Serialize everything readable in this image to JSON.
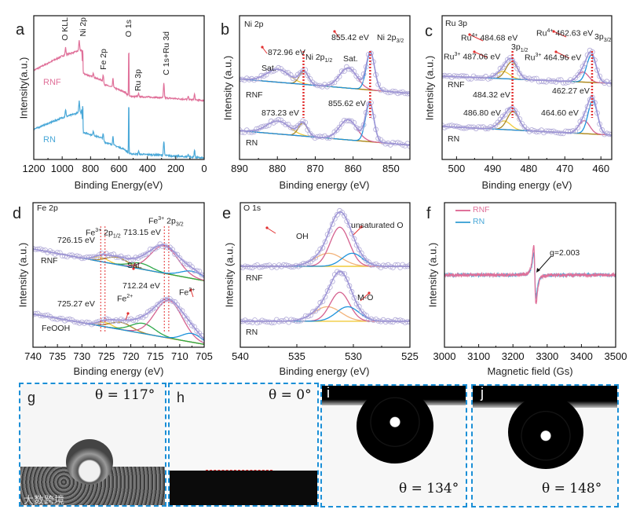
{
  "panels": {
    "a": {
      "letter": "a",
      "ylabel": "Intensity(a.u.)",
      "xlabel": "Binding Energy(eV)",
      "peak_labels": [
        "O KLL",
        "Ni 2p",
        "Fe 2p",
        "O 1s",
        "Ru 3p",
        "C 1s+Ru 3d"
      ],
      "series_labels": [
        "RNF",
        "RN"
      ]
    },
    "b": {
      "letter": "b",
      "title": "Ni 2p",
      "ylabel": "Intensity (a.u.)",
      "xlabel": "Binding energy (eV)",
      "ann": {
        "e1": "855.42 eV",
        "e2": "872.96 eV",
        "e3": "855.62 eV",
        "e4": "873.23 eV",
        "sat": "Sat.",
        "p32": "Ni 2p",
        "p32sub": "3/2",
        "p12": "Ni 2p",
        "p12sub": "1/2"
      },
      "series_labels": [
        "RNF",
        "RN"
      ]
    },
    "c": {
      "letter": "c",
      "title": "Ru 3p",
      "ylabel": "Intensity (a.u.)",
      "xlabel": "Binding energy (eV)",
      "ann": {
        "ru4": "Ru",
        "ru4sup": "4+",
        "ru3": "Ru",
        "ru3sup": "3+",
        "e1": "484.68 eV",
        "e2": "462.63 eV",
        "e3": "487.06 eV",
        "e4": "464.96 eV",
        "e5": "484.32 eV",
        "e6": "462.27 eV",
        "e7": "486.80 eV",
        "e8": "464.60 eV",
        "p12": "3p",
        "p12sub": "1/2",
        "p32": "3p",
        "p32sub": "3/2"
      },
      "series_labels": [
        "RNF",
        "RN"
      ]
    },
    "d": {
      "letter": "d",
      "title": "Fe 2p",
      "ylabel": "Intensity (a.u.)",
      "xlabel": "Binding energy (eV)",
      "ann": {
        "fe": "Fe",
        "fe3": "3+",
        "fe2": "2+",
        "p32": " 2p",
        "p32sub": "3/2",
        "p12": " 2p",
        "p12sub": "1/2",
        "e1": "713.15 eV",
        "e2": "726.15 eV",
        "e3": "712.24 eV",
        "e4": "725.27 eV",
        "sat": "Sat."
      },
      "series_labels": [
        "RNF",
        "FeOOH"
      ]
    },
    "e": {
      "letter": "e",
      "title": "O 1s",
      "ylabel": "Intensity (a.u.)",
      "xlabel": "Binding energy (eV)",
      "ann": {
        "unsat": "unsaturated O",
        "oh": "OH",
        "mo": "M-O"
      },
      "series_labels": [
        "RNF",
        "RN"
      ]
    },
    "f": {
      "letter": "f",
      "ylabel": "Intensity (a.u.)",
      "xlabel": "Magnetic field (Gs)",
      "legend": [
        "RNF",
        "RN"
      ],
      "g_label": "g=2.003"
    }
  },
  "images": [
    {
      "letter": "g",
      "theta": "θ = 117°"
    },
    {
      "letter": "h",
      "theta": "θ = 0°"
    },
    {
      "letter": "i",
      "theta": "θ = 134°"
    },
    {
      "letter": "j",
      "theta": "θ = 148°"
    }
  ],
  "watermark": "大数跨境",
  "colors": {
    "rnf": "#e0719a",
    "rn": "#4aa8d8",
    "envelope": "#9d94d6",
    "bg": "#f0cc3c",
    "brown": "#a8872a",
    "pink": "#d5618f",
    "blue": "#1e93dc",
    "green": "#2ea84a",
    "orange": "#f2b27a",
    "marker": "#e23030",
    "frame": "#1b8fd6"
  },
  "chart_data": [
    {
      "id": "a",
      "type": "line",
      "xlim": [
        1200,
        0
      ],
      "ylim": [
        0,
        1
      ],
      "xticks": [
        1200,
        1000,
        800,
        600,
        400,
        200,
        0
      ],
      "series": [
        {
          "name": "RNF",
          "baseline": [
            [
              1200,
              0.62
            ],
            [
              1000,
              0.72
            ],
            [
              870,
              0.76
            ],
            [
              855,
              0.6
            ],
            [
              720,
              0.55
            ],
            [
              700,
              0.52
            ],
            [
              640,
              0.5
            ],
            [
              560,
              0.47
            ],
            [
              530,
              0.44
            ],
            [
              300,
              0.43
            ],
            [
              0,
              0.41
            ]
          ],
          "peaks": [
            [
              976,
              0.05
            ],
            [
              880,
              0.07
            ],
            [
              862,
              0.08
            ],
            [
              855,
              0.17
            ],
            [
              780,
              0.03
            ],
            [
              711,
              0.05
            ],
            [
              642,
              0.06
            ],
            [
              531,
              0.37
            ],
            [
              462,
              0.02
            ],
            [
              284,
              0.1
            ],
            [
              112,
              0.02
            ],
            [
              68,
              0.04
            ]
          ]
        },
        {
          "name": "RN",
          "baseline": [
            [
              1200,
              0.21
            ],
            [
              1000,
              0.29
            ],
            [
              870,
              0.33
            ],
            [
              855,
              0.19
            ],
            [
              720,
              0.15
            ],
            [
              700,
              0.12
            ],
            [
              640,
              0.1
            ],
            [
              560,
              0.07
            ],
            [
              530,
              0.04
            ],
            [
              300,
              0.03
            ],
            [
              0,
              0.01
            ]
          ],
          "peaks": [
            [
              976,
              0.05
            ],
            [
              880,
              0.08
            ],
            [
              862,
              0.09
            ],
            [
              855,
              0.2
            ],
            [
              780,
              0.03
            ],
            [
              711,
              0.04
            ],
            [
              642,
              0.06
            ],
            [
              531,
              0.4
            ],
            [
              462,
              0.02
            ],
            [
              284,
              0.1
            ],
            [
              112,
              0.02
            ],
            [
              68,
              0.05
            ]
          ]
        }
      ]
    },
    {
      "id": "b",
      "type": "xps",
      "xlim": [
        890,
        845
      ],
      "ylim": [
        0,
        1
      ],
      "xticks": [
        890,
        880,
        870,
        860,
        850
      ],
      "markers": [
        873.1,
        855.5
      ],
      "series": [
        {
          "name": "RNF",
          "bg": [
            0.56,
            0.46
          ],
          "components": [
            {
              "name": "Sat.",
              "c": 879.8,
              "h": 0.09,
              "w": 3.0,
              "color": "bg"
            },
            {
              "name": "Ni 2p1/2",
              "c": 873.0,
              "h": 0.09,
              "w": 1.2,
              "color": "brown"
            },
            {
              "name": "Sat.",
              "c": 861.3,
              "h": 0.14,
              "w": 2.3,
              "color": "pink"
            },
            {
              "name": "Ni 2p3/2",
              "c": 855.42,
              "h": 0.26,
              "w": 1.1,
              "color": "blue"
            }
          ]
        },
        {
          "name": "RN",
          "bg": [
            0.2,
            0.1
          ],
          "components": [
            {
              "name": "Sat.",
              "c": 879.8,
              "h": 0.09,
              "w": 3.0,
              "color": "bg"
            },
            {
              "name": "Ni 2p1/2",
              "c": 873.23,
              "h": 0.09,
              "w": 1.2,
              "color": "brown"
            },
            {
              "name": "Sat.",
              "c": 861.3,
              "h": 0.14,
              "w": 2.3,
              "color": "pink"
            },
            {
              "name": "Ni 2p3/2",
              "c": 855.62,
              "h": 0.27,
              "w": 1.1,
              "color": "blue"
            }
          ]
        }
      ]
    },
    {
      "id": "c",
      "type": "xps",
      "xlim": [
        504,
        457
      ],
      "ylim": [
        0,
        1
      ],
      "xticks": [
        500,
        490,
        480,
        470,
        460
      ],
      "markers": [
        484.5,
        462.45
      ],
      "series": [
        {
          "name": "RNF",
          "bg": [
            0.58,
            0.53
          ],
          "components": [
            {
              "name": "Ru3+ 3p1/2",
              "c": 487.06,
              "h": 0.05,
              "w": 1.8,
              "color": "bg"
            },
            {
              "name": "Ru4+ 3p1/2",
              "c": 484.68,
              "h": 0.12,
              "w": 1.6,
              "color": "brown"
            },
            {
              "name": "Ru3+ 3p3/2",
              "c": 464.96,
              "h": 0.07,
              "w": 1.5,
              "color": "pink"
            },
            {
              "name": "Ru4+ 3p3/2",
              "c": 462.63,
              "h": 0.19,
              "w": 1.3,
              "color": "blue"
            }
          ]
        },
        {
          "name": "RN",
          "bg": [
            0.23,
            0.17
          ],
          "components": [
            {
              "name": "Ru3+ 3p1/2",
              "c": 486.8,
              "h": 0.06,
              "w": 1.8,
              "color": "bg"
            },
            {
              "name": "Ru4+ 3p1/2",
              "c": 484.32,
              "h": 0.13,
              "w": 1.6,
              "color": "brown"
            },
            {
              "name": "Ru3+ 3p3/2",
              "c": 464.6,
              "h": 0.09,
              "w": 1.5,
              "color": "pink"
            },
            {
              "name": "Ru4+ 3p3/2",
              "c": 462.27,
              "h": 0.23,
              "w": 1.3,
              "color": "blue"
            }
          ]
        }
      ]
    },
    {
      "id": "d",
      "type": "xps",
      "xlim": [
        740,
        705
      ],
      "ylim": [
        0,
        1
      ],
      "xticks": [
        740,
        735,
        730,
        725,
        720,
        715,
        710,
        705
      ],
      "markers": [
        726.15,
        725.27,
        713.15,
        712.24
      ],
      "series": [
        {
          "name": "RNF",
          "bg": [
            0.68,
            0.46
          ],
          "components": [
            {
              "name": "Fe3+ 2p1/2",
              "c": 726.15,
              "h": 0.03,
              "w": 1.5,
              "color": "bg"
            },
            {
              "name": "Sat.",
              "c": 722.8,
              "h": 0.05,
              "w": 2.2,
              "color": "brown"
            },
            {
              "name": "Sat.",
              "c": 718.0,
              "h": 0.04,
              "w": 2.2,
              "color": "green"
            },
            {
              "name": "Fe3+ 2p3/2",
              "c": 713.15,
              "h": 0.19,
              "w": 2.8,
              "color": "pink"
            },
            {
              "name": "Fe2+",
              "c": 707.5,
              "h": 0.05,
              "w": 2.3,
              "color": "blue"
            }
          ]
        },
        {
          "name": "FeOOH",
          "bg": [
            0.23,
            0.02
          ],
          "components": [
            {
              "name": "Fe3+ 2p1/2",
              "c": 725.27,
              "h": 0.03,
              "w": 1.5,
              "color": "bg"
            },
            {
              "name": "Fe2+",
              "c": 722.0,
              "h": 0.05,
              "w": 2.2,
              "color": "brown"
            },
            {
              "name": "Sat.",
              "c": 717.5,
              "h": 0.07,
              "w": 2.4,
              "color": "green"
            },
            {
              "name": "Fe3+ 2p3/2",
              "c": 712.24,
              "h": 0.26,
              "w": 2.8,
              "color": "pink"
            },
            {
              "name": "Fe2+",
              "c": 707.5,
              "h": 0.06,
              "w": 2.0,
              "color": "blue"
            }
          ]
        }
      ]
    },
    {
      "id": "e",
      "type": "xps",
      "xlim": [
        540,
        525
      ],
      "ylim": [
        0,
        1
      ],
      "xticks": [
        540,
        535,
        530,
        525
      ],
      "markers": [],
      "series": [
        {
          "name": "RNF",
          "bg": [
            0.56,
            0.56
          ],
          "components": [
            {
              "name": "OH",
              "c": 532.2,
              "h": 0.09,
              "w": 1.2,
              "color": "orange"
            },
            {
              "name": "M-O",
              "c": 531.2,
              "h": 0.27,
              "w": 0.85,
              "color": "pink"
            },
            {
              "name": "unsaturated O",
              "c": 530.1,
              "h": 0.09,
              "w": 0.9,
              "color": "blue"
            }
          ]
        },
        {
          "name": "RN",
          "bg": [
            0.18,
            0.18
          ],
          "components": [
            {
              "name": "OH",
              "c": 532.3,
              "h": 0.1,
              "w": 1.2,
              "color": "orange"
            },
            {
              "name": "M-O",
              "c": 531.2,
              "h": 0.2,
              "w": 0.85,
              "color": "pink"
            },
            {
              "name": "unsaturated O",
              "c": 530.5,
              "h": 0.1,
              "w": 1.0,
              "color": "blue"
            }
          ]
        }
      ]
    },
    {
      "id": "f",
      "type": "line",
      "xlim": [
        3000,
        3500
      ],
      "ylim": [
        -1,
        1
      ],
      "xticks": [
        3000,
        3100,
        3200,
        3300,
        3400,
        3500
      ],
      "series": [
        {
          "name": "RN",
          "center": 3264,
          "amplitude": 0.6,
          "color": "rn"
        },
        {
          "name": "RNF",
          "center": 3264,
          "amplitude": 0.78,
          "color": "rnf"
        }
      ],
      "annotation": "g=2.003"
    }
  ]
}
